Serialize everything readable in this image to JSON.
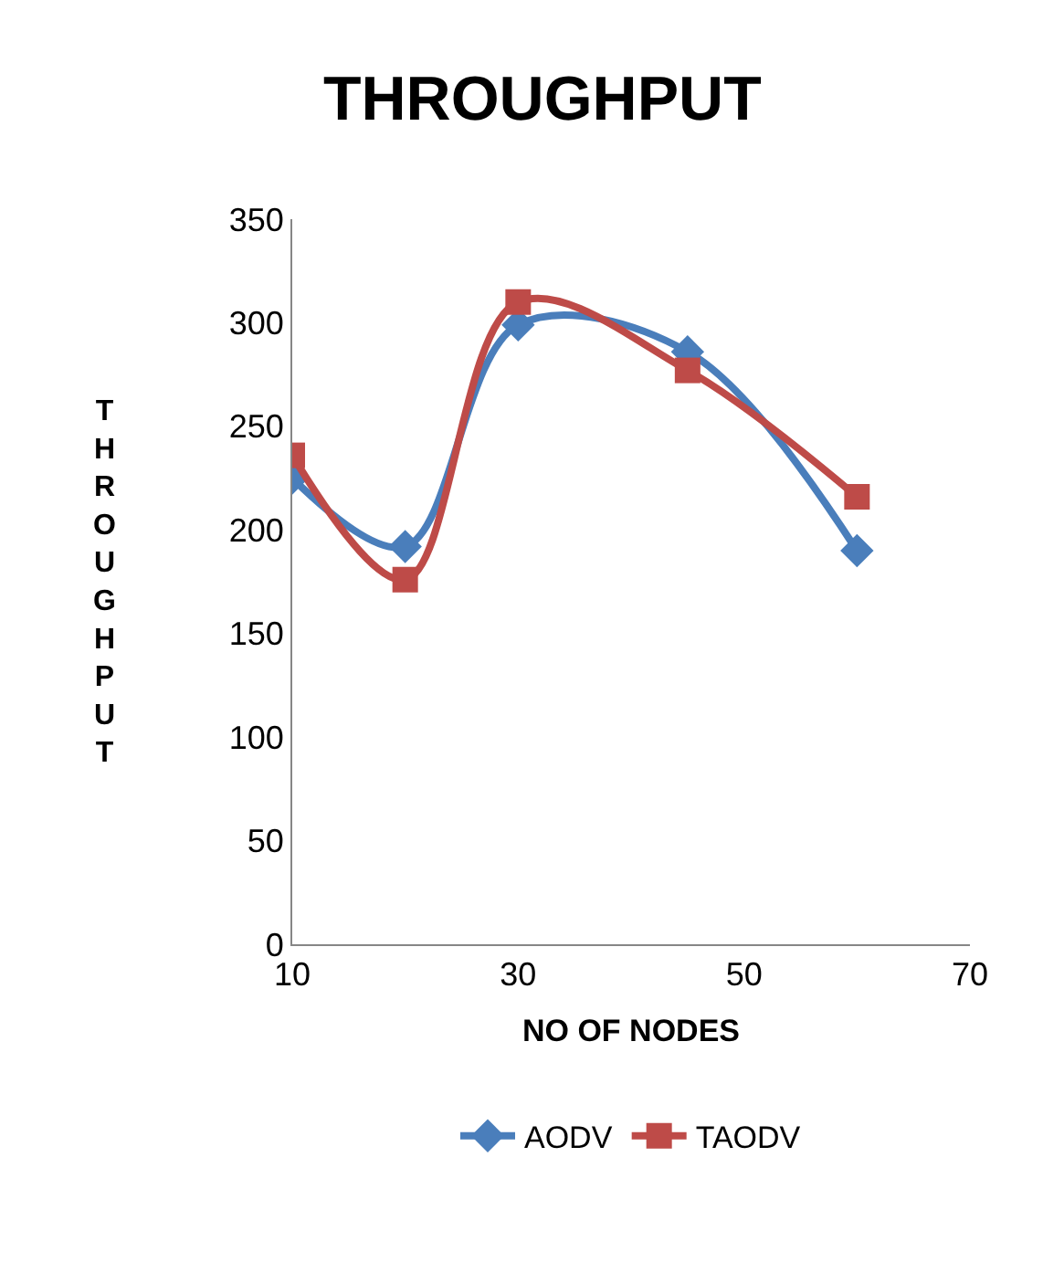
{
  "chart_data": {
    "type": "line",
    "title": "THROUGHPUT",
    "xlabel": "NO OF NODES",
    "ylabel": "THROUGHPUT",
    "x": [
      10,
      20,
      30,
      45,
      60
    ],
    "series": [
      {
        "name": "AODV",
        "color": "#4a7ebb",
        "marker": "diamond",
        "values": [
          225,
          192,
          299,
          286,
          190
        ]
      },
      {
        "name": "TAODV",
        "color": "#be4b48",
        "marker": "square",
        "values": [
          236,
          176,
          310,
          277,
          216
        ]
      }
    ],
    "xlim": [
      10,
      70
    ],
    "xticks": [
      10,
      30,
      50,
      70
    ],
    "ylim": [
      0,
      350
    ],
    "yticks": [
      0,
      50,
      100,
      150,
      200,
      250,
      300,
      350
    ],
    "legend": "bottom"
  }
}
